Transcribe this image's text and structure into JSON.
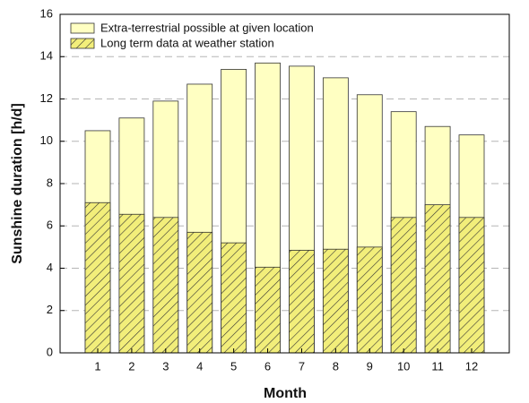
{
  "chart_data": {
    "type": "bar",
    "overlap": true,
    "xlabel": "Month",
    "ylabel": "Sunshine duration [h/d]",
    "categories": [
      "1",
      "2",
      "3",
      "4",
      "5",
      "6",
      "7",
      "8",
      "9",
      "10",
      "11",
      "12"
    ],
    "series": [
      {
        "name": "Extra-terrestrial possible at given location",
        "color": "#ffffc2",
        "hatch": false,
        "values": [
          10.5,
          11.1,
          11.9,
          12.7,
          13.4,
          13.7,
          13.55,
          13.0,
          12.2,
          11.4,
          10.7,
          10.3
        ]
      },
      {
        "name": "Long term data at weather station",
        "color": "#f2ee7a",
        "hatch": true,
        "values": [
          7.1,
          6.55,
          6.4,
          5.7,
          5.2,
          4.05,
          4.85,
          4.9,
          5.0,
          6.4,
          7.0,
          6.4
        ]
      }
    ],
    "ylim": [
      0,
      16
    ],
    "yticks": [
      0,
      2,
      4,
      6,
      8,
      10,
      12,
      14,
      16
    ],
    "grid": true,
    "legend": "upper left"
  }
}
